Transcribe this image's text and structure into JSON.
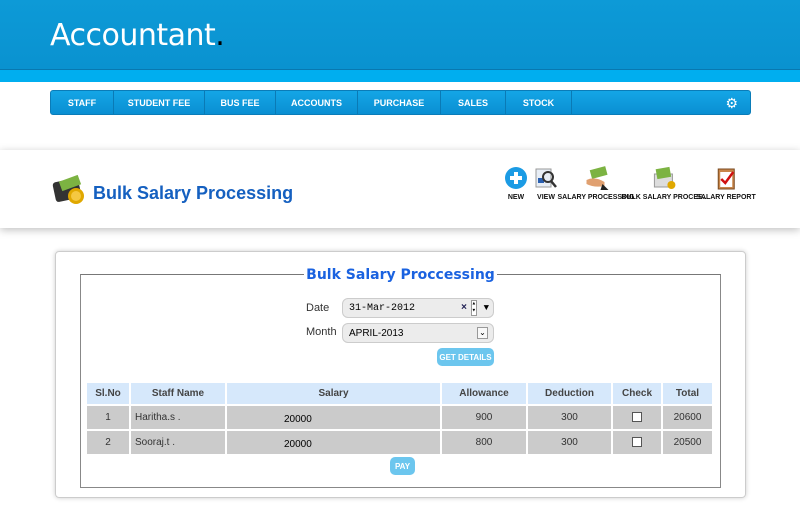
{
  "app": {
    "logo_text": "Accountant",
    "logo_dot": "."
  },
  "nav": {
    "items": [
      "STAFF",
      "STUDENT FEE",
      "BUS FEE",
      "ACCOUNTS",
      "PURCHASE",
      "SALES",
      "STOCK"
    ],
    "settings_icon": "gear-icon"
  },
  "page": {
    "title": "Bulk Salary Processing"
  },
  "toolbar": [
    {
      "label": "NEW",
      "icon": "plus-circle-icon"
    },
    {
      "label": "VIEW",
      "icon": "magnifier-icon"
    },
    {
      "label": "SALARY PROCESSING",
      "icon": "money-hand-icon"
    },
    {
      "label": "BULK SALARY PROCES..",
      "icon": "money-envelope-icon"
    },
    {
      "label": "SALARY REPORT",
      "icon": "clipboard-check-icon"
    }
  ],
  "form": {
    "legend": "Bulk Salary Proccessing",
    "date_label": "Date",
    "date_value": "31-Mar-2012",
    "month_label": "Month",
    "month_value": "APRIL-2013",
    "get_details": "GET DETAILS",
    "pay": "PAY"
  },
  "table": {
    "headers": [
      "Sl.No",
      "Staff Name",
      "Salary",
      "Allowance",
      "Deduction",
      "Check",
      "Total"
    ],
    "rows": [
      [
        "1",
        "Haritha.s .",
        "20000",
        "900",
        "300",
        "",
        "20600"
      ],
      [
        "2",
        "Sooraj.t .",
        "20000",
        "800",
        "300",
        "",
        "20500"
      ]
    ]
  },
  "colors": {
    "header": "#0d9ad7",
    "stripe": "#00aeef",
    "title": "#1560c0",
    "button": "#6cc6ee"
  }
}
